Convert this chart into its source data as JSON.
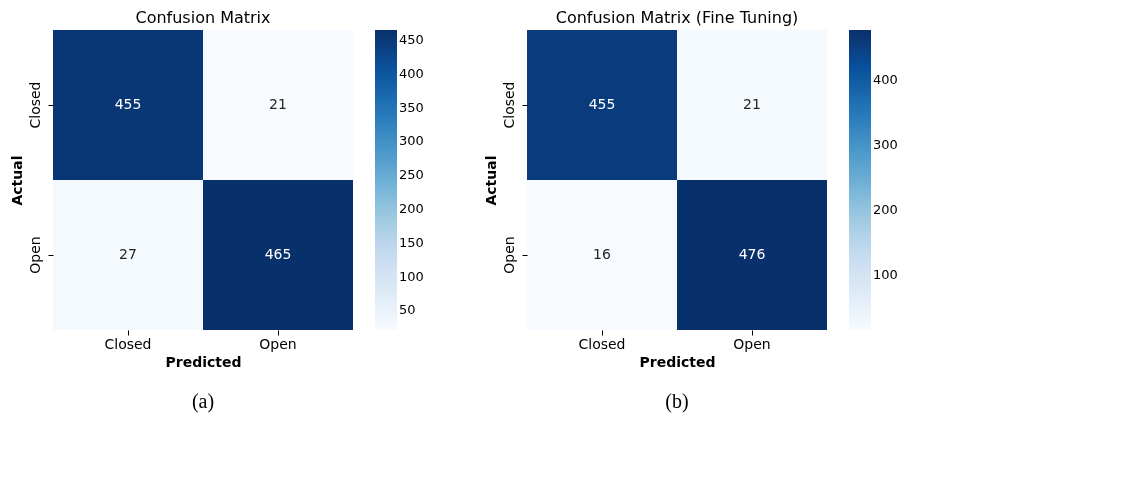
{
  "chart_data": [
    {
      "type": "heatmap",
      "title": "Confusion Matrix",
      "xlabel": "Predicted",
      "ylabel": "Actual",
      "categories": [
        "Closed",
        "Open"
      ],
      "y_categories": [
        "Closed",
        "Open"
      ],
      "cells": [
        [
          455,
          21
        ],
        [
          27,
          465
        ]
      ],
      "clim": [
        21,
        465
      ],
      "cticks": [
        50,
        100,
        150,
        200,
        250,
        300,
        350,
        400,
        450
      ],
      "data_labels": true,
      "annotations": [
        "(a)"
      ]
    },
    {
      "type": "heatmap",
      "title": "Confusion Matrix (Fine Tuning)",
      "xlabel": "Predicted",
      "ylabel": "Actual",
      "categories": [
        "Closed",
        "Open"
      ],
      "y_categories": [
        "Closed",
        "Open"
      ],
      "cells": [
        [
          455,
          21
        ],
        [
          16,
          476
        ]
      ],
      "clim": [
        16,
        476
      ],
      "cticks": [
        100,
        200,
        300,
        400
      ],
      "data_labels": true,
      "annotations": [
        "(b)"
      ]
    }
  ]
}
